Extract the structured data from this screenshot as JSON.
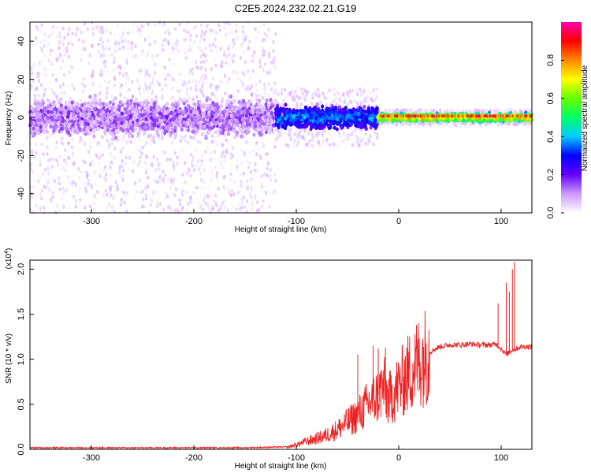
{
  "title": "C2E5.2024.232.02.21.G19",
  "chart_data": [
    {
      "type": "heatmap",
      "title": "C2E5.2024.232.02.21.G19",
      "xlabel": "Height of straight line (km)",
      "ylabel": "Frequency (Hz)",
      "xlim": [
        -360,
        130
      ],
      "ylim": [
        -50,
        50
      ],
      "x_ticks": [
        -300,
        -200,
        -100,
        0,
        100
      ],
      "y_ticks": [
        -40,
        -20,
        0,
        20,
        40
      ],
      "colorbar": {
        "label": "Normalized spectral amplitude",
        "range": [
          0,
          1
        ],
        "ticks": [
          "0.0",
          "0.2",
          "0.4",
          "0.6",
          "0.8"
        ],
        "colors": [
          "#ffffff",
          "#cc99ff",
          "#6600ff",
          "#0000ff",
          "#00ccff",
          "#00ff66",
          "#66ff00",
          "#ffff00",
          "#ff8800",
          "#ff0000",
          "#ff00aa"
        ]
      },
      "description_bands": [
        {
          "x_range": [
            -360,
            -120
          ],
          "scatter_half_width_hz": 50,
          "core_half_width_hz": 10,
          "core_level": 0.12
        },
        {
          "x_range": [
            -120,
            -20
          ],
          "scatter_half_width_hz": 15,
          "core_half_width_hz": 6,
          "core_level": 0.35
        },
        {
          "x_range": [
            -20,
            130
          ],
          "scatter_half_width_hz": 4,
          "core_half_width_hz": 2,
          "core_level": 0.75
        }
      ]
    },
    {
      "type": "line",
      "xlabel": "Height of straight line (km)",
      "ylabel": "SNR (10 * v/v)",
      "y_scale_label": "(x10",
      "y_scale_exp": "4",
      "xlim": [
        -360,
        130
      ],
      "ylim": [
        0,
        2.1
      ],
      "x_ticks": [
        -300,
        -200,
        -100,
        0,
        100
      ],
      "y_ticks": [
        "0.0",
        "0.5",
        "1.0",
        "1.5",
        "2.0"
      ],
      "series": [
        {
          "color": "#ee2222",
          "x": [
            -360,
            -300,
            -200,
            -150,
            -110,
            -100,
            -90,
            -80,
            -70,
            -60,
            -50,
            -40,
            -30,
            -20,
            -15,
            -10,
            0,
            10,
            20,
            30,
            40,
            50,
            60,
            70,
            80,
            90,
            95,
            100,
            105,
            110,
            115,
            120,
            130
          ],
          "y": [
            0.01,
            0.01,
            0.01,
            0.01,
            0.02,
            0.05,
            0.09,
            0.12,
            0.16,
            0.22,
            0.3,
            0.38,
            0.5,
            0.6,
            0.7,
            0.55,
            0.7,
            0.85,
            0.98,
            1.08,
            1.14,
            1.16,
            1.16,
            1.17,
            1.16,
            1.16,
            1.17,
            1.12,
            1.05,
            1.1,
            1.12,
            1.14,
            1.14
          ]
        }
      ],
      "spikes": [
        {
          "x": -40,
          "y": 1.05
        },
        {
          "x": -25,
          "y": 1.15
        },
        {
          "x": -20,
          "y": 1.12
        },
        {
          "x": -13,
          "y": 1.13
        },
        {
          "x": 97,
          "y": 1.62
        },
        {
          "x": 105,
          "y": 1.85
        },
        {
          "x": 108,
          "y": 1.75
        },
        {
          "x": 111,
          "y": 2.0
        },
        {
          "x": 113,
          "y": 2.08
        }
      ]
    }
  ]
}
